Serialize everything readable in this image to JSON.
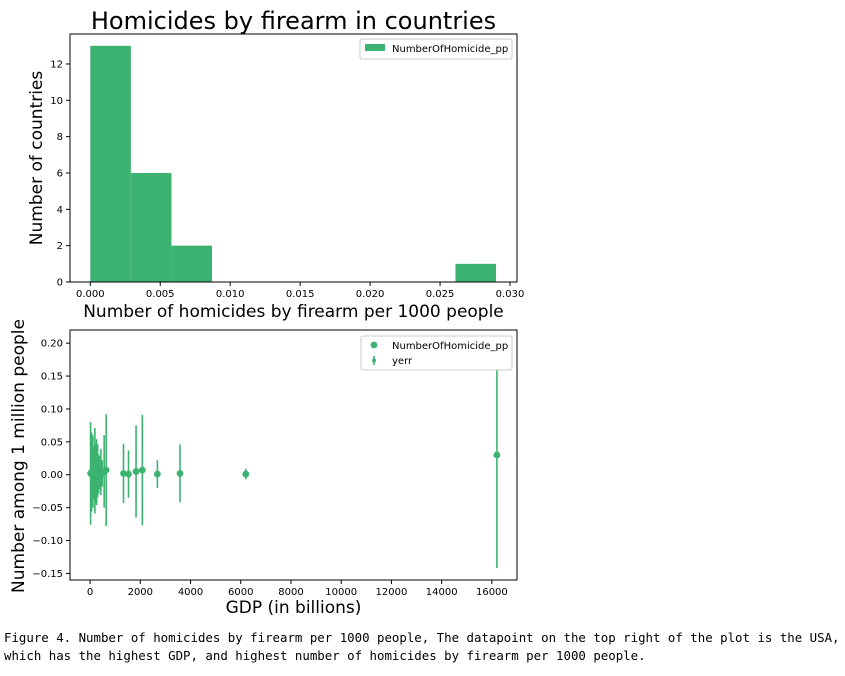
{
  "chart_data": [
    {
      "type": "bar",
      "title": "Homicides by firearm in countries",
      "xlabel": "Number of homicides by firearm per 1000 people",
      "ylabel": "Number of countries",
      "legend": [
        "NumberOfHomicide_pp"
      ],
      "legend_position": "top-right",
      "color": "#3cb371",
      "bins": [
        {
          "start": 0.0,
          "end": 0.0029,
          "count": 13
        },
        {
          "start": 0.0029,
          "end": 0.0058,
          "count": 6
        },
        {
          "start": 0.0058,
          "end": 0.0087,
          "count": 2
        },
        {
          "start": 0.0087,
          "end": 0.0116,
          "count": 0
        },
        {
          "start": 0.0116,
          "end": 0.0145,
          "count": 0
        },
        {
          "start": 0.0145,
          "end": 0.0174,
          "count": 0
        },
        {
          "start": 0.0174,
          "end": 0.0203,
          "count": 0
        },
        {
          "start": 0.0203,
          "end": 0.0232,
          "count": 0
        },
        {
          "start": 0.0232,
          "end": 0.0261,
          "count": 0
        },
        {
          "start": 0.0261,
          "end": 0.029,
          "count": 1
        }
      ],
      "xlim": [
        -0.00145,
        0.0305
      ],
      "ylim": [
        0,
        13.65
      ],
      "xticks": [
        0.0,
        0.005,
        0.01,
        0.015,
        0.02,
        0.025,
        0.03
      ],
      "xtick_labels": [
        "0.000",
        "0.005",
        "0.010",
        "0.015",
        "0.020",
        "0.025",
        "0.030"
      ],
      "yticks": [
        0,
        2,
        4,
        6,
        8,
        10,
        12
      ],
      "ytick_labels": [
        "0",
        "2",
        "4",
        "6",
        "8",
        "10",
        "12"
      ]
    },
    {
      "type": "scatter",
      "xlabel": "GDP (in billions)",
      "ylabel": "Number among 1 million people",
      "legend": [
        "NumberOfHomicide_pp",
        "yerr"
      ],
      "legend_position": "top-right",
      "color": "#3cb371",
      "points": [
        {
          "x": 20,
          "y": 0.002,
          "err": 0.078
        },
        {
          "x": 60,
          "y": 0.004,
          "err": 0.06
        },
        {
          "x": 110,
          "y": 0.005,
          "err": 0.055
        },
        {
          "x": 150,
          "y": 0.003,
          "err": 0.04
        },
        {
          "x": 190,
          "y": 0.006,
          "err": 0.065
        },
        {
          "x": 220,
          "y": 0.002,
          "err": 0.045
        },
        {
          "x": 260,
          "y": 0.004,
          "err": 0.05
        },
        {
          "x": 300,
          "y": 0.006,
          "err": 0.04
        },
        {
          "x": 340,
          "y": 0.001,
          "err": 0.03
        },
        {
          "x": 380,
          "y": 0.003,
          "err": 0.025
        },
        {
          "x": 430,
          "y": 0.004,
          "err": 0.035
        },
        {
          "x": 480,
          "y": 0.002,
          "err": 0.02
        },
        {
          "x": 560,
          "y": 0.005,
          "err": 0.055
        },
        {
          "x": 640,
          "y": 0.007,
          "err": 0.085
        },
        {
          "x": 1330,
          "y": 0.002,
          "err": 0.045
        },
        {
          "x": 1530,
          "y": 0.001,
          "err": 0.036
        },
        {
          "x": 1830,
          "y": 0.005,
          "err": 0.07
        },
        {
          "x": 2080,
          "y": 0.007,
          "err": 0.084
        },
        {
          "x": 2680,
          "y": 0.001,
          "err": 0.021
        },
        {
          "x": 3580,
          "y": 0.002,
          "err": 0.044
        },
        {
          "x": 6200,
          "y": 0.001,
          "err": 0.008
        },
        {
          "x": 16200,
          "y": 0.03,
          "err": 0.172
        }
      ],
      "xlim": [
        -800,
        17000
      ],
      "ylim": [
        -0.16,
        0.22
      ],
      "xticks": [
        0,
        2000,
        4000,
        6000,
        8000,
        10000,
        12000,
        14000,
        16000
      ],
      "xtick_labels": [
        "0",
        "2000",
        "4000",
        "6000",
        "8000",
        "10000",
        "12000",
        "14000",
        "16000"
      ],
      "yticks": [
        0.2,
        0.15,
        0.1,
        0.05,
        0.0,
        -0.05,
        -0.1,
        -0.15
      ],
      "ytick_labels": [
        "0.20",
        "0.15",
        "0.10",
        "0.05",
        "0.00",
        "−0.05",
        "−0.10",
        "−0.15"
      ]
    }
  ],
  "caption": "Figure 4. Number of homicides by firearm per 1000 people, The datapoint on the top right of the plot is the USA, which has the highest GDP, and highest number of homicides by firearm per 1000 people."
}
